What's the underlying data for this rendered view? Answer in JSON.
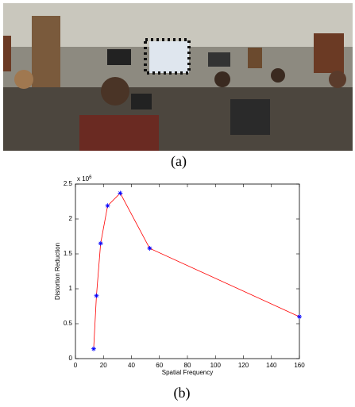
{
  "captions": {
    "a": "(a)",
    "b": "(b)"
  },
  "chart_data": {
    "type": "line",
    "xlabel": "Spatial Frequency",
    "ylabel": "Distortion Reduction",
    "y_multiplier": {
      "base": "x 10",
      "exponent": "6"
    },
    "x": [
      13,
      15,
      18,
      23,
      32,
      53,
      160
    ],
    "values": [
      0.14,
      0.9,
      1.65,
      2.19,
      2.37,
      1.58,
      0.6
    ],
    "color": "#ff0000",
    "marker_color": "#0000ff",
    "xlim": [
      0,
      160
    ],
    "xticks": [
      0,
      20,
      40,
      60,
      80,
      100,
      120,
      140,
      160
    ],
    "ylim": [
      0,
      2.5
    ],
    "yticks": [
      0,
      0.5,
      1,
      1.5,
      2,
      2.5
    ]
  }
}
